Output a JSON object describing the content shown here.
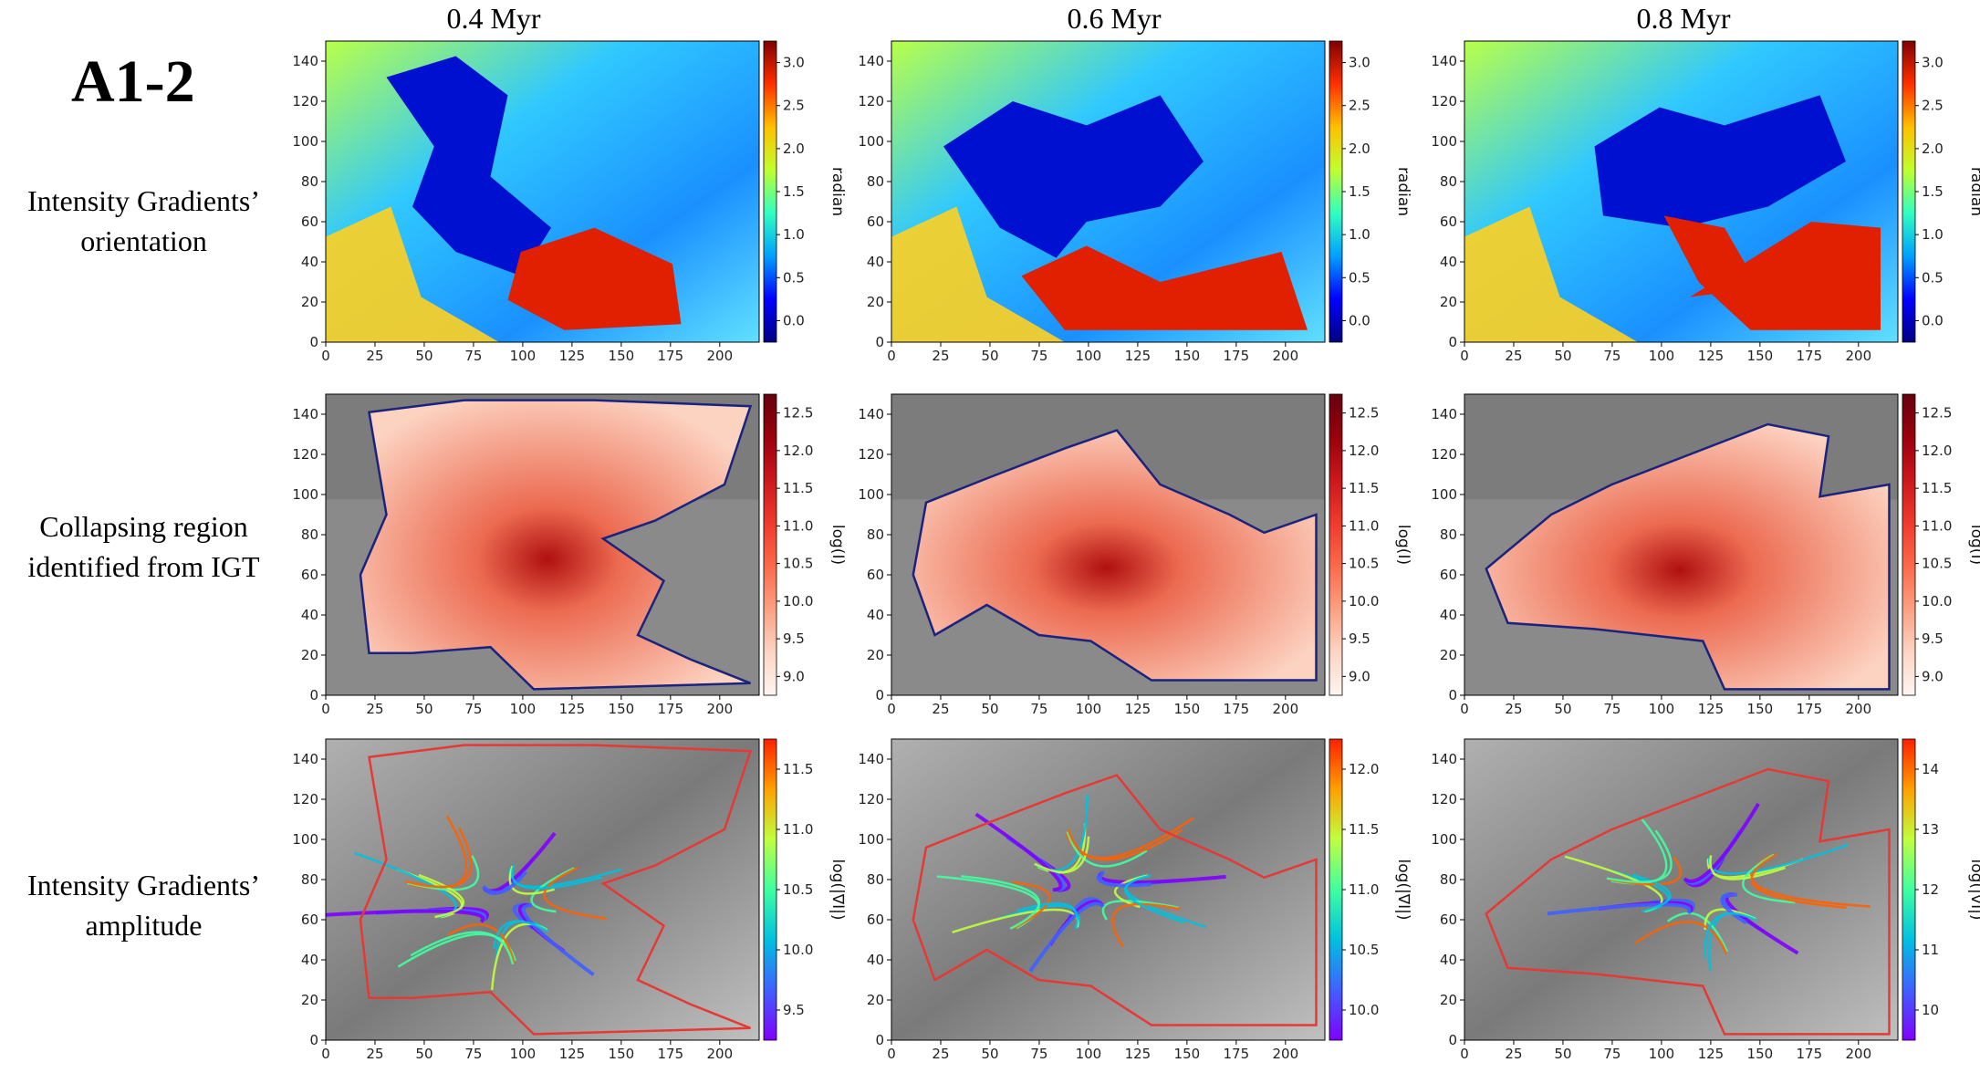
{
  "figure_label": "A1-2",
  "columns": [
    {
      "time": "0.4 Myr"
    },
    {
      "time": "0.6 Myr"
    },
    {
      "time": "0.8 Myr"
    }
  ],
  "rows": [
    {
      "label_lines": [
        "Intensity Gradients’",
        "orientation"
      ],
      "colorbar_label": "radian",
      "colormap": "jet"
    },
    {
      "label_lines": [
        "Collapsing region",
        "identified from IGT"
      ],
      "colorbar_label": "log(I)",
      "colormap": "reds-on-gray"
    },
    {
      "label_lines": [
        "Intensity Gradients’",
        "amplitude"
      ],
      "colorbar_label": "log(|∇I|)",
      "colormap": "rainbow-on-gray"
    }
  ],
  "axes": {
    "x_ticks": [
      "0",
      "25",
      "50",
      "75",
      "100",
      "125",
      "150",
      "175",
      "200"
    ],
    "y_ticks": [
      "0",
      "20",
      "40",
      "60",
      "80",
      "100",
      "120",
      "140"
    ],
    "xlim": [
      0,
      220
    ],
    "ylim": [
      0,
      150
    ]
  },
  "colorbar_ticks": [
    [
      [
        "0.0",
        "0.5",
        "1.0",
        "1.5",
        "2.0",
        "2.5",
        "3.0"
      ],
      [
        "0.0",
        "0.5",
        "1.0",
        "1.5",
        "2.0",
        "2.5",
        "3.0"
      ],
      [
        "0.0",
        "0.5",
        "1.0",
        "1.5",
        "2.0",
        "2.5",
        "3.0"
      ]
    ],
    [
      [
        "9.0",
        "9.5",
        "10.0",
        "10.5",
        "11.0",
        "11.5",
        "12.0",
        "12.5"
      ],
      [
        "9.0",
        "9.5",
        "10.0",
        "10.5",
        "11.0",
        "11.5",
        "12.0",
        "12.5"
      ],
      [
        "9.0",
        "9.5",
        "10.0",
        "10.5",
        "11.0",
        "11.5",
        "12.0",
        "12.5"
      ]
    ],
    [
      [
        "9.5",
        "10.0",
        "10.5",
        "11.0",
        "11.5"
      ],
      [
        "10.0",
        "10.5",
        "11.0",
        "11.5",
        "12.0"
      ],
      [
        "10",
        "11",
        "12",
        "13",
        "14"
      ]
    ]
  ],
  "colors": {
    "contour_row2": "#1a237e",
    "contour_row3": "#e53935"
  }
}
